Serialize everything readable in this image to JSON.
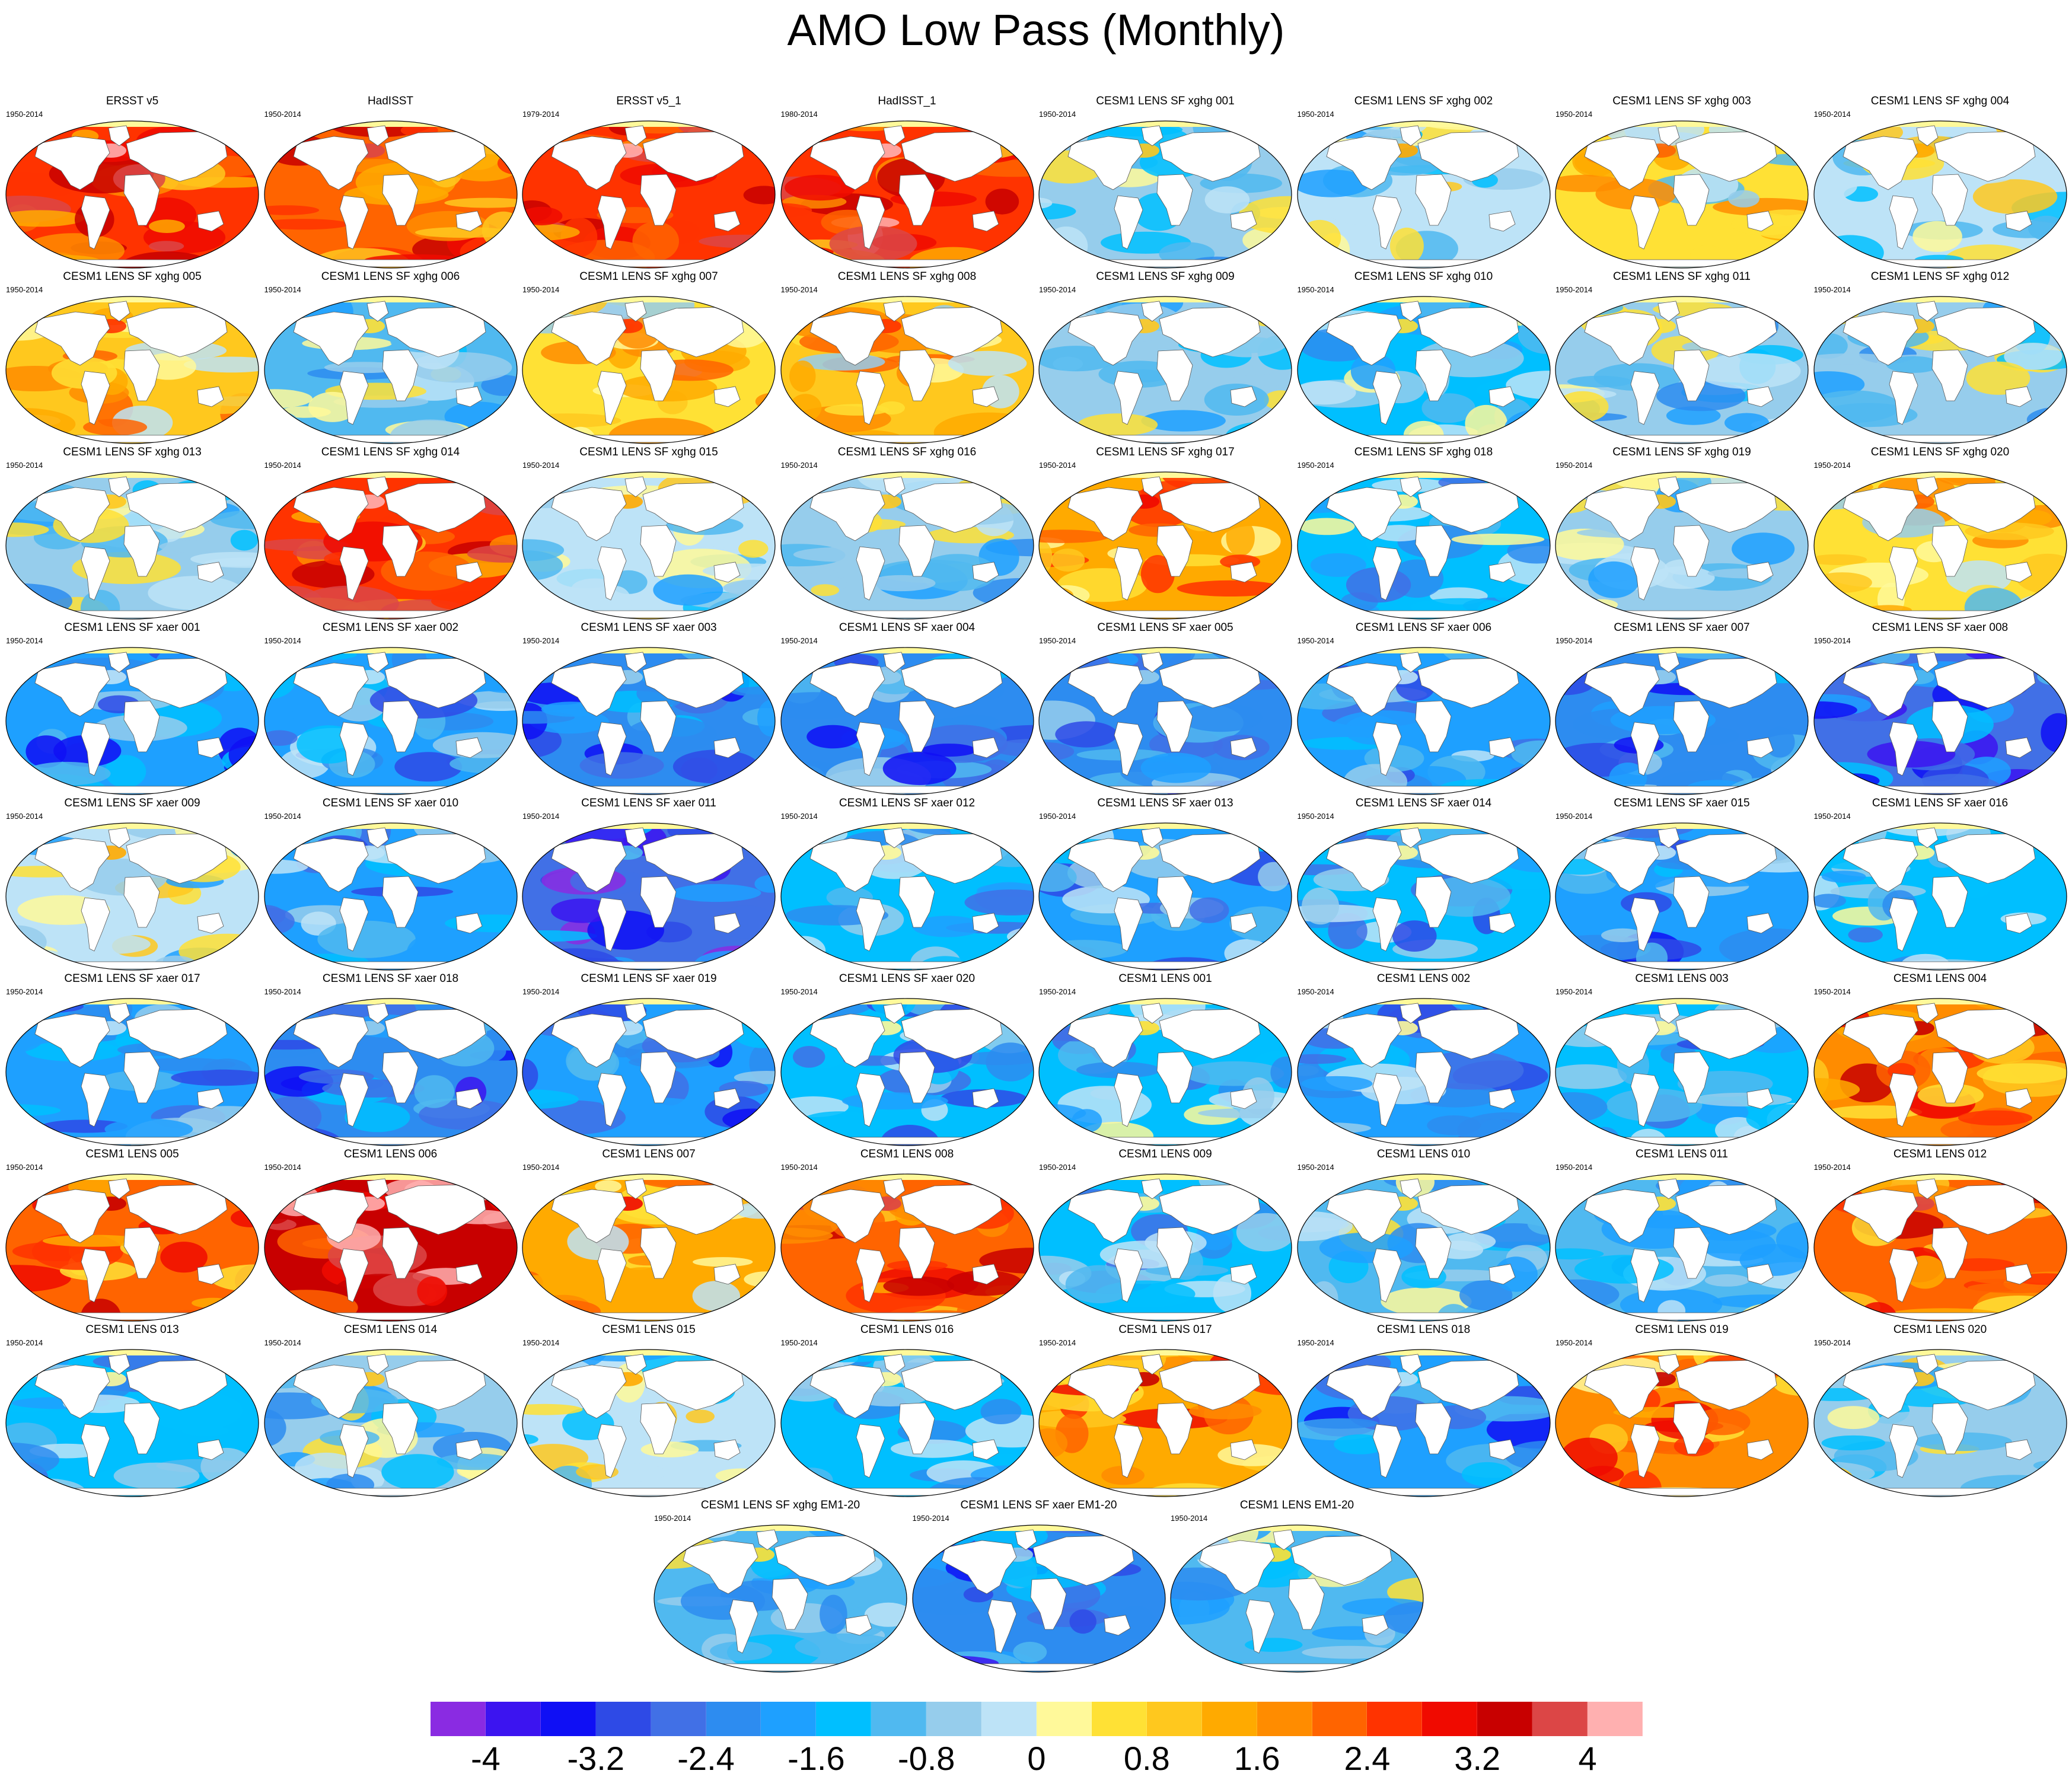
{
  "title": "AMO Low Pass (Monthly)",
  "chart_data": {
    "type": "heatmap",
    "title": "AMO Low Pass (Monthly)",
    "projection": "Robinson global SST pattern maps",
    "layout": "8 columns x 8 rows plus 3 ensemble-mean maps centered below",
    "colorbar": {
      "ticks": [
        -4,
        -3.2,
        -2.4,
        -1.6,
        -0.8,
        0,
        0.8,
        1.6,
        2.4,
        3.2,
        4
      ],
      "tick_labels": [
        "-4",
        "-3.2",
        "-2.4",
        "-1.6",
        "-0.8",
        "0",
        "0.8",
        "1.6",
        "2.4",
        "3.2",
        "4"
      ],
      "colors": [
        "#8a2be2",
        "#3c14f0",
        "#0f0ff5",
        "#2e4ae6",
        "#4170e6",
        "#2d8cf0",
        "#1ea0ff",
        "#00bfff",
        "#50b9f0",
        "#96cdec",
        "#bde3f7",
        "#fff99a",
        "#ffe135",
        "#ffc81e",
        "#ffaa00",
        "#ff8c00",
        "#ff6400",
        "#ff3300",
        "#f00a00",
        "#c80000",
        "#dc4646",
        "#ffb0b0"
      ]
    },
    "panels": [
      {
        "title": "ERSST v5",
        "period": "1950-2014",
        "mean_level": 2.4
      },
      {
        "title": "HadISST",
        "period": "1950-2014",
        "mean_level": 2.2
      },
      {
        "title": "ERSST v5_1",
        "period": "1979-2014",
        "mean_level": 2.6
      },
      {
        "title": "HadISST_1",
        "period": "1980-2014",
        "mean_level": 2.6
      },
      {
        "title": "CESM1 LENS SF xghg 001",
        "period": "1950-2014",
        "mean_level": -0.6
      },
      {
        "title": "CESM1 LENS SF xghg 002",
        "period": "1950-2014",
        "mean_level": -0.4
      },
      {
        "title": "CESM1 LENS SF xghg 003",
        "period": "1950-2014",
        "mean_level": 0.4
      },
      {
        "title": "CESM1 LENS SF xghg 004",
        "period": "1950-2014",
        "mean_level": -0.2
      },
      {
        "title": "CESM1 LENS SF xghg 005",
        "period": "1950-2014",
        "mean_level": 1.0
      },
      {
        "title": "CESM1 LENS SF xghg 006",
        "period": "1950-2014",
        "mean_level": -1.0
      },
      {
        "title": "CESM1 LENS SF xghg 007",
        "period": "1950-2014",
        "mean_level": 0.8
      },
      {
        "title": "CESM1 LENS SF xghg 008",
        "period": "1950-2014",
        "mean_level": 0.9
      },
      {
        "title": "CESM1 LENS SF xghg 009",
        "period": "1950-2014",
        "mean_level": -0.7
      },
      {
        "title": "CESM1 LENS SF xghg 010",
        "period": "1950-2014",
        "mean_level": -1.2
      },
      {
        "title": "CESM1 LENS SF xghg 011",
        "period": "1950-2014",
        "mean_level": -0.8
      },
      {
        "title": "CESM1 LENS SF xghg 012",
        "period": "1950-2014",
        "mean_level": -0.6
      },
      {
        "title": "CESM1 LENS SF xghg 013",
        "period": "1950-2014",
        "mean_level": -0.7
      },
      {
        "title": "CESM1 LENS SF xghg 014",
        "period": "1950-2014",
        "mean_level": 2.5
      },
      {
        "title": "CESM1 LENS SF xghg 015",
        "period": "1950-2014",
        "mean_level": -0.4
      },
      {
        "title": "CESM1 LENS SF xghg 016",
        "period": "1950-2014",
        "mean_level": -0.6
      },
      {
        "title": "CESM1 LENS SF xghg 017",
        "period": "1950-2014",
        "mean_level": 1.4
      },
      {
        "title": "CESM1 LENS SF xghg 018",
        "period": "1950-2014",
        "mean_level": -1.3
      },
      {
        "title": "CESM1 LENS SF xghg 019",
        "period": "1950-2014",
        "mean_level": -0.5
      },
      {
        "title": "CESM1 LENS SF xghg 020",
        "period": "1950-2014",
        "mean_level": 0.5
      },
      {
        "title": "CESM1 LENS SF xaer 001",
        "period": "1950-2014",
        "mean_level": -2.0
      },
      {
        "title": "CESM1 LENS SF xaer 002",
        "period": "1950-2014",
        "mean_level": -1.7
      },
      {
        "title": "CESM1 LENS SF xaer 003",
        "period": "1950-2014",
        "mean_level": -2.3
      },
      {
        "title": "CESM1 LENS SF xaer 004",
        "period": "1950-2014",
        "mean_level": -2.1
      },
      {
        "title": "CESM1 LENS SF xaer 005",
        "period": "1950-2014",
        "mean_level": -2.2
      },
      {
        "title": "CESM1 LENS SF xaer 006",
        "period": "1950-2014",
        "mean_level": -1.7
      },
      {
        "title": "CESM1 LENS SF xaer 007",
        "period": "1950-2014",
        "mean_level": -2.1
      },
      {
        "title": "CESM1 LENS SF xaer 008",
        "period": "1950-2014",
        "mean_level": -2.5
      },
      {
        "title": "CESM1 LENS SF xaer 009",
        "period": "1950-2014",
        "mean_level": -0.4
      },
      {
        "title": "CESM1 LENS SF xaer 010",
        "period": "1950-2014",
        "mean_level": -1.7
      },
      {
        "title": "CESM1 LENS SF xaer 011",
        "period": "1950-2014",
        "mean_level": -2.8
      },
      {
        "title": "CESM1 LENS SF xaer 012",
        "period": "1950-2014",
        "mean_level": -1.3
      },
      {
        "title": "CESM1 LENS SF xaer 013",
        "period": "1950-2014",
        "mean_level": -1.6
      },
      {
        "title": "CESM1 LENS SF xaer 014",
        "period": "1950-2014",
        "mean_level": -1.5
      },
      {
        "title": "CESM1 LENS SF xaer 015",
        "period": "1950-2014",
        "mean_level": -1.8
      },
      {
        "title": "CESM1 LENS SF xaer 016",
        "period": "1950-2014",
        "mean_level": -1.3
      },
      {
        "title": "CESM1 LENS SF xaer 017",
        "period": "1950-2014",
        "mean_level": -1.9
      },
      {
        "title": "CESM1 LENS SF xaer 018",
        "period": "1950-2014",
        "mean_level": -2.2
      },
      {
        "title": "CESM1 LENS SF xaer 019",
        "period": "1950-2014",
        "mean_level": -2.0
      },
      {
        "title": "CESM1 LENS SF xaer 020",
        "period": "1950-2014",
        "mean_level": -1.5
      },
      {
        "title": "CESM1 LENS 001",
        "period": "1950-2014",
        "mean_level": -1.2
      },
      {
        "title": "CESM1 LENS 002",
        "period": "1950-2014",
        "mean_level": -1.6
      },
      {
        "title": "CESM1 LENS 003",
        "period": "1950-2014",
        "mean_level": -1.5
      },
      {
        "title": "CESM1 LENS 004",
        "period": "1950-2014",
        "mean_level": 1.8
      },
      {
        "title": "CESM1 LENS 005",
        "period": "1950-2014",
        "mean_level": 2.0
      },
      {
        "title": "CESM1 LENS 006",
        "period": "1950-2014",
        "mean_level": 3.4
      },
      {
        "title": "CESM1 LENS 007",
        "period": "1950-2014",
        "mean_level": 1.3
      },
      {
        "title": "CESM1 LENS 008",
        "period": "1950-2014",
        "mean_level": 2.3
      },
      {
        "title": "CESM1 LENS 009",
        "period": "1950-2014",
        "mean_level": -1.3
      },
      {
        "title": "CESM1 LENS 010",
        "period": "1950-2014",
        "mean_level": -1.0
      },
      {
        "title": "CESM1 LENS 011",
        "period": "1950-2014",
        "mean_level": -1.1
      },
      {
        "title": "CESM1 LENS 012",
        "period": "1950-2014",
        "mean_level": 2.1
      },
      {
        "title": "CESM1 LENS 013",
        "period": "1950-2014",
        "mean_level": -1.5
      },
      {
        "title": "CESM1 LENS 014",
        "period": "1950-2014",
        "mean_level": -0.6
      },
      {
        "title": "CESM1 LENS 015",
        "period": "1950-2014",
        "mean_level": -0.4
      },
      {
        "title": "CESM1 LENS 016",
        "period": "1950-2014",
        "mean_level": -1.3
      },
      {
        "title": "CESM1 LENS 017",
        "period": "1950-2014",
        "mean_level": 1.6
      },
      {
        "title": "CESM1 LENS 018",
        "period": "1950-2014",
        "mean_level": -2.0
      },
      {
        "title": "CESM1 LENS 019",
        "period": "1950-2014",
        "mean_level": 1.7
      },
      {
        "title": "CESM1 LENS 020",
        "period": "1950-2014",
        "mean_level": -0.6
      },
      {
        "title": "CESM1 LENS SF xghg EM1-20",
        "period": "1950-2014",
        "mean_level": -0.9
      },
      {
        "title": "CESM1 LENS SF xaer EM1-20",
        "period": "1950-2014",
        "mean_level": -2.3
      },
      {
        "title": "CESM1 LENS EM1-20",
        "period": "1950-2014",
        "mean_level": -0.9
      }
    ]
  }
}
